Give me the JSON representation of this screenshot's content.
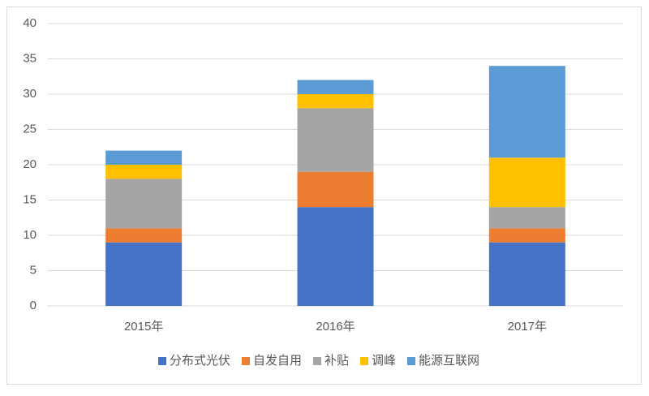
{
  "chart_data": {
    "type": "bar",
    "stacked": true,
    "categories": [
      "2015年",
      "2016年",
      "2017年"
    ],
    "series": [
      {
        "name": "分布式光伏",
        "color": "#4472c4",
        "values": [
          9,
          14,
          9
        ]
      },
      {
        "name": "自发自用",
        "color": "#ed7d31",
        "values": [
          2,
          5,
          2
        ]
      },
      {
        "name": "补贴",
        "color": "#a5a5a5",
        "values": [
          7,
          9,
          3
        ]
      },
      {
        "name": "调峰",
        "color": "#ffc000",
        "values": [
          2,
          2,
          7
        ]
      },
      {
        "name": "能源互联网",
        "color": "#5b9bd5",
        "values": [
          2,
          2,
          13
        ]
      }
    ],
    "ylim": [
      0,
      40
    ],
    "yticks": [
      0,
      5,
      10,
      15,
      20,
      25,
      30,
      35,
      40
    ],
    "grid": true,
    "legend": "bottom"
  }
}
